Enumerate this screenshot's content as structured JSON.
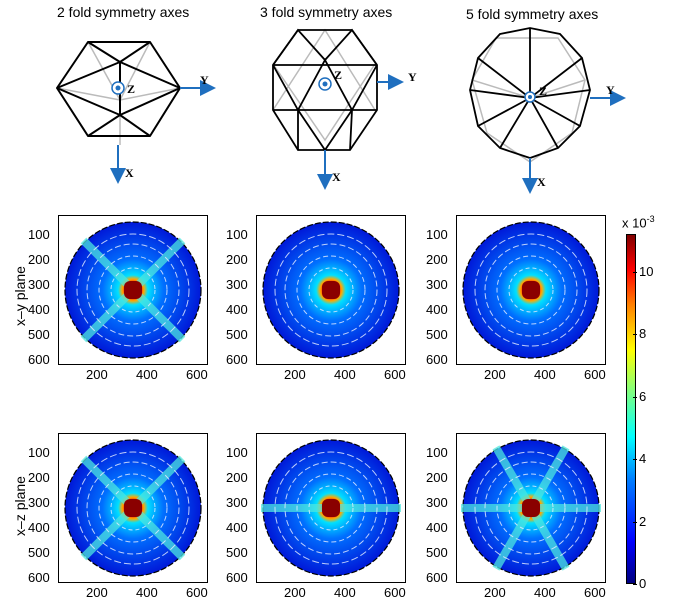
{
  "titles": [
    "2 fold symmetry axes",
    "3 fold symmetry axes",
    "5 fold symmetry axes"
  ],
  "axis_labels": {
    "x": "X",
    "y": "Y",
    "z": "Z"
  },
  "row_labels": [
    "x–y plane",
    "x–z plane"
  ],
  "y_ticks": [
    "100",
    "200",
    "300",
    "400",
    "500",
    "600"
  ],
  "x_ticks": [
    "200",
    "400",
    "600"
  ],
  "colorbar": {
    "multiplier": "x 10",
    "exponent": "-3",
    "ticks": [
      "10",
      "8",
      "6",
      "4",
      "2",
      "0"
    ]
  }
}
